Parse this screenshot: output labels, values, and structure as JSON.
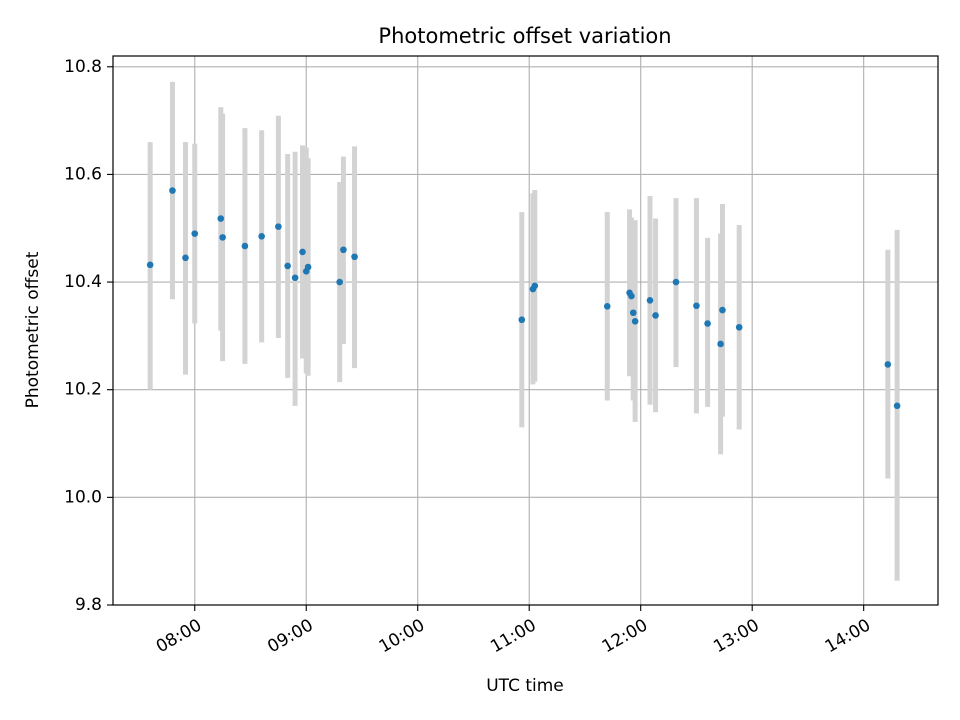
{
  "chart_data": {
    "type": "scatter",
    "title": "Photometric offset variation",
    "xlabel": "UTC time",
    "ylabel": "Photometric offset",
    "x_axis_type": "time",
    "xlim": [
      "07:16",
      "14:40"
    ],
    "ylim": [
      9.8,
      10.82
    ],
    "x_ticks": [
      "08:00",
      "09:00",
      "10:00",
      "11:00",
      "12:00",
      "13:00",
      "14:00"
    ],
    "y_ticks": [
      "9.8",
      "10.0",
      "10.2",
      "10.4",
      "10.6",
      "10.8"
    ],
    "grid": true,
    "colors": {
      "point": "#1f77b4",
      "errorbar": "#d3d3d3"
    },
    "points": [
      {
        "x": "07:36",
        "y": 10.432,
        "lo": 10.2,
        "hi": 10.66
      },
      {
        "x": "07:48",
        "y": 10.57,
        "lo": 10.368,
        "hi": 10.772
      },
      {
        "x": "07:55",
        "y": 10.445,
        "lo": 10.228,
        "hi": 10.66
      },
      {
        "x": "08:00",
        "y": 10.49,
        "lo": 10.323,
        "hi": 10.657
      },
      {
        "x": "08:14",
        "y": 10.518,
        "lo": 10.31,
        "hi": 10.725
      },
      {
        "x": "08:15",
        "y": 10.483,
        "lo": 10.253,
        "hi": 10.713
      },
      {
        "x": "08:27",
        "y": 10.467,
        "lo": 10.248,
        "hi": 10.686
      },
      {
        "x": "08:36",
        "y": 10.485,
        "lo": 10.288,
        "hi": 10.682
      },
      {
        "x": "08:45",
        "y": 10.503,
        "lo": 10.296,
        "hi": 10.709
      },
      {
        "x": "08:50",
        "y": 10.43,
        "lo": 10.222,
        "hi": 10.638
      },
      {
        "x": "08:54",
        "y": 10.408,
        "lo": 10.17,
        "hi": 10.642
      },
      {
        "x": "08:58",
        "y": 10.456,
        "lo": 10.258,
        "hi": 10.654
      },
      {
        "x": "09:00",
        "y": 10.42,
        "lo": 10.23,
        "hi": 10.65
      },
      {
        "x": "09:01",
        "y": 10.428,
        "lo": 10.226,
        "hi": 10.63
      },
      {
        "x": "09:18",
        "y": 10.4,
        "lo": 10.214,
        "hi": 10.586
      },
      {
        "x": "09:20",
        "y": 10.46,
        "lo": 10.285,
        "hi": 10.633
      },
      {
        "x": "09:26",
        "y": 10.447,
        "lo": 10.24,
        "hi": 10.652
      },
      {
        "x": "10:56",
        "y": 10.33,
        "lo": 10.13,
        "hi": 10.53
      },
      {
        "x": "11:02",
        "y": 10.387,
        "lo": 10.21,
        "hi": 10.565
      },
      {
        "x": "11:03",
        "y": 10.393,
        "lo": 10.215,
        "hi": 10.571
      },
      {
        "x": "11:42",
        "y": 10.355,
        "lo": 10.18,
        "hi": 10.53
      },
      {
        "x": "11:54",
        "y": 10.38,
        "lo": 10.225,
        "hi": 10.535
      },
      {
        "x": "11:55",
        "y": 10.374,
        "lo": 10.25,
        "hi": 10.52
      },
      {
        "x": "11:56",
        "y": 10.343,
        "lo": 10.18,
        "hi": 10.505
      },
      {
        "x": "11:57",
        "y": 10.327,
        "lo": 10.14,
        "hi": 10.515
      },
      {
        "x": "12:05",
        "y": 10.366,
        "lo": 10.172,
        "hi": 10.56
      },
      {
        "x": "12:08",
        "y": 10.338,
        "lo": 10.158,
        "hi": 10.518
      },
      {
        "x": "12:19",
        "y": 10.4,
        "lo": 10.242,
        "hi": 10.556
      },
      {
        "x": "12:30",
        "y": 10.356,
        "lo": 10.156,
        "hi": 10.556
      },
      {
        "x": "12:36",
        "y": 10.323,
        "lo": 10.168,
        "hi": 10.482
      },
      {
        "x": "12:43",
        "y": 10.285,
        "lo": 10.08,
        "hi": 10.49
      },
      {
        "x": "12:44",
        "y": 10.348,
        "lo": 10.15,
        "hi": 10.545
      },
      {
        "x": "12:53",
        "y": 10.316,
        "lo": 10.126,
        "hi": 10.506
      },
      {
        "x": "14:13",
        "y": 10.247,
        "lo": 10.035,
        "hi": 10.46
      },
      {
        "x": "14:18",
        "y": 10.17,
        "lo": 9.845,
        "hi": 10.497
      }
    ]
  }
}
